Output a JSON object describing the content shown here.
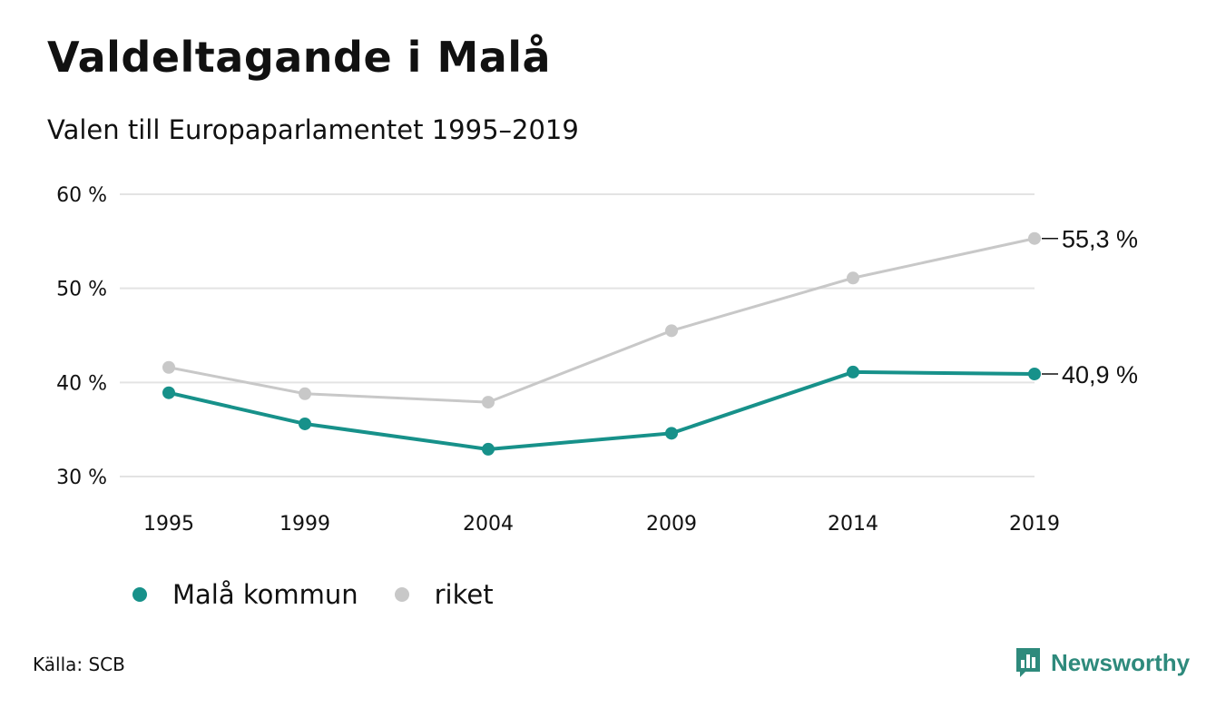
{
  "title": "Valdeltagande i Malå",
  "subtitle": "Valen till Europaparlamentet 1995–2019",
  "source": "Källa: SCB",
  "brand": {
    "name": "Newsworthy",
    "color": "#2e8a7c",
    "icon": "bar-chart-speech-bubble-icon"
  },
  "colors": {
    "mala": "#17918a",
    "riket": "#c8c8c8",
    "grid": "#e3e3e3"
  },
  "chart_data": {
    "type": "line",
    "title": "Valdeltagande i Malå",
    "subtitle": "Valen till Europaparlamentet 1995–2019",
    "x": [
      "1995",
      "1999",
      "2004",
      "2009",
      "2014",
      "2019"
    ],
    "ylim": [
      30,
      60
    ],
    "yticks": [
      30,
      40,
      50,
      60
    ],
    "ytick_labels": [
      "30 %",
      "40 %",
      "50 %",
      "60 %"
    ],
    "grid": true,
    "legend_position": "bottom-left",
    "series": [
      {
        "name": "Malå kommun",
        "values": [
          38.9,
          35.6,
          32.9,
          34.6,
          41.1,
          40.9
        ],
        "end_label": "40,9 %"
      },
      {
        "name": "riket",
        "values": [
          41.6,
          38.8,
          37.9,
          45.5,
          51.1,
          55.3
        ],
        "end_label": "55,3 %"
      }
    ]
  }
}
